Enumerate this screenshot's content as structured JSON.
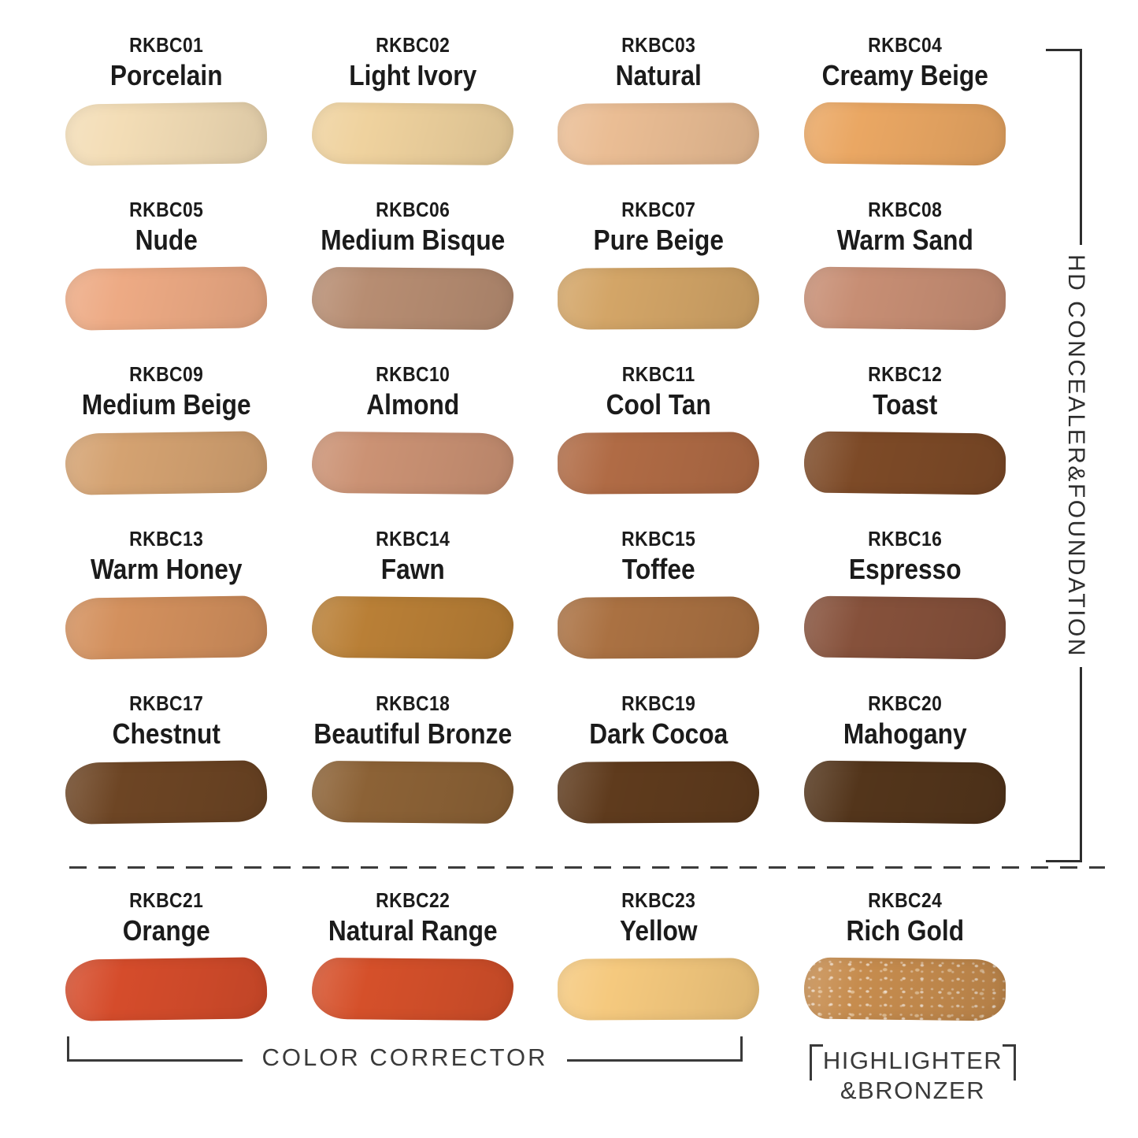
{
  "right_label": "HD CONCEALER&FOUNDATION",
  "footer": {
    "corrector": "COLOR CORRECTOR",
    "highlighter1": "HIGHLIGHTER",
    "highlighter2": "&BRONZER"
  },
  "swatches": [
    {
      "code": "RKBC01",
      "name": "Porcelain",
      "color": "#f3ddb6",
      "group": "hd-concealer-foundation"
    },
    {
      "code": "RKBC02",
      "name": "Light Ivory",
      "color": "#efd29e",
      "group": "hd-concealer-foundation"
    },
    {
      "code": "RKBC03",
      "name": "Natural",
      "color": "#eabd94",
      "group": "hd-concealer-foundation"
    },
    {
      "code": "RKBC04",
      "name": "Creamy Beige",
      "color": "#eaa763",
      "group": "hd-concealer-foundation"
    },
    {
      "code": "RKBC05",
      "name": "Nude",
      "color": "#edaa84",
      "group": "hd-concealer-foundation"
    },
    {
      "code": "RKBC06",
      "name": "Medium Bisque",
      "color": "#b78d72",
      "group": "hd-concealer-foundation"
    },
    {
      "code": "RKBC07",
      "name": "Pure Beige",
      "color": "#d3a567",
      "group": "hd-concealer-foundation"
    },
    {
      "code": "RKBC08",
      "name": "Warm Sand",
      "color": "#c78e74",
      "group": "hd-concealer-foundation"
    },
    {
      "code": "RKBC09",
      "name": "Medium Beige",
      "color": "#d4a271",
      "group": "hd-concealer-foundation"
    },
    {
      "code": "RKBC10",
      "name": "Almond",
      "color": "#cb9274",
      "group": "hd-concealer-foundation"
    },
    {
      "code": "RKBC11",
      "name": "Cool Tan",
      "color": "#b06b45",
      "group": "hd-concealer-foundation"
    },
    {
      "code": "RKBC12",
      "name": "Toast",
      "color": "#7d4a27",
      "group": "hd-concealer-foundation"
    },
    {
      "code": "RKBC13",
      "name": "Warm Honey",
      "color": "#d3905d",
      "group": "hd-concealer-foundation"
    },
    {
      "code": "RKBC14",
      "name": "Fawn",
      "color": "#b97f36",
      "group": "hd-concealer-foundation"
    },
    {
      "code": "RKBC15",
      "name": "Toffee",
      "color": "#aa7142",
      "group": "hd-concealer-foundation"
    },
    {
      "code": "RKBC16",
      "name": "Espresso",
      "color": "#86513b",
      "group": "hd-concealer-foundation"
    },
    {
      "code": "RKBC17",
      "name": "Chestnut",
      "color": "#6d4524",
      "group": "hd-concealer-foundation"
    },
    {
      "code": "RKBC18",
      "name": "Beautiful Bronze",
      "color": "#8c6236",
      "group": "hd-concealer-foundation"
    },
    {
      "code": "RKBC19",
      "name": "Dark Cocoa",
      "color": "#5f3b1d",
      "group": "hd-concealer-foundation"
    },
    {
      "code": "RKBC20",
      "name": "Mahogany",
      "color": "#53351b",
      "group": "hd-concealer-foundation"
    },
    {
      "code": "RKBC21",
      "name": "Orange",
      "color": "#d54c2b",
      "group": "color-corrector"
    },
    {
      "code": "RKBC22",
      "name": "Natural Range",
      "color": "#d5502a",
      "group": "color-corrector"
    },
    {
      "code": "RKBC23",
      "name": "Yellow",
      "color": "#f5c97e",
      "group": "color-corrector"
    },
    {
      "code": "RKBC24",
      "name": "Rich Gold",
      "color": "#c68c4e",
      "group": "highlighter-bronzer",
      "shimmer": true
    }
  ]
}
